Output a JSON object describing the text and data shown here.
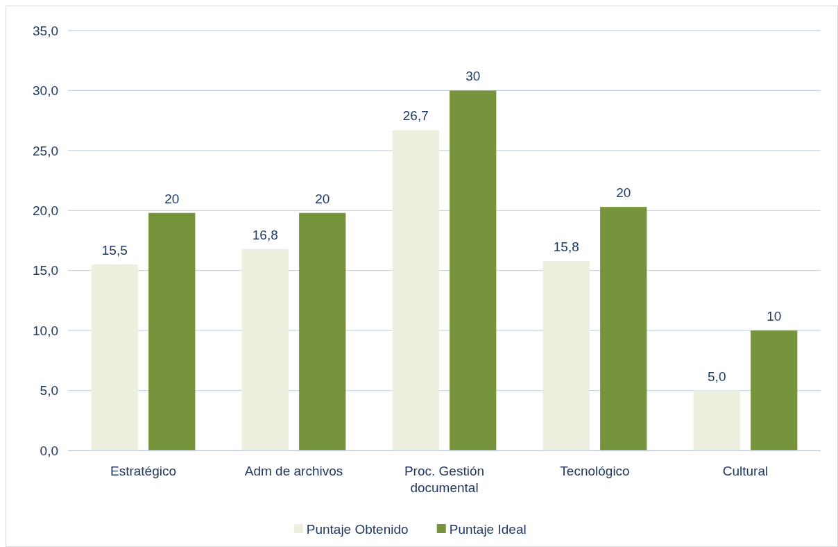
{
  "chart_data": {
    "type": "bar",
    "categories": [
      "Estratégico",
      "Adm de archivos",
      "Proc. Gestión documental",
      "Tecnológico",
      "Cultural"
    ],
    "series": [
      {
        "name": "Puntaje Obtenido",
        "color": "#ebf1de",
        "values": [
          15.5,
          16.8,
          26.7,
          15.8,
          5.0
        ],
        "value_labels": [
          "15,5",
          "16,8",
          "26,7",
          "15,8",
          "5,0"
        ]
      },
      {
        "name": "Puntaje Ideal",
        "color": "#77933c",
        "values": [
          19.8,
          19.8,
          30,
          20.3,
          10
        ],
        "value_labels": [
          "20",
          "20",
          "30",
          "20",
          "10"
        ]
      }
    ],
    "ylim": [
      0,
      35
    ],
    "yticks": [
      {
        "value": 0,
        "label": "0,0"
      },
      {
        "value": 5,
        "label": "5,0"
      },
      {
        "value": 10,
        "label": "10,0"
      },
      {
        "value": 15,
        "label": "15,0"
      },
      {
        "value": 20,
        "label": "20,0"
      },
      {
        "value": 25,
        "label": "25,0"
      },
      {
        "value": 30,
        "label": "30,0"
      },
      {
        "value": 35,
        "label": "35,0"
      }
    ],
    "grid": "y",
    "legend": "bottom"
  }
}
